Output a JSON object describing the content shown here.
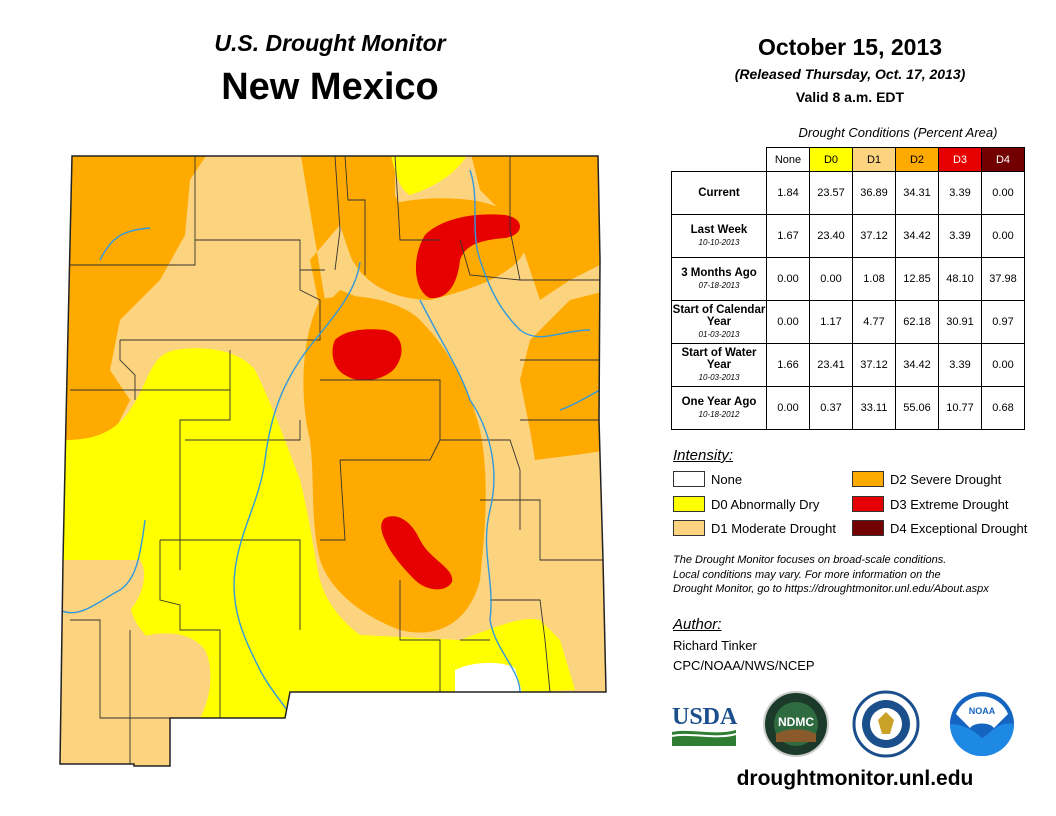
{
  "header": {
    "subtitle": "U.S. Drought Monitor",
    "state": "New Mexico"
  },
  "report": {
    "date": "October 15, 2013",
    "released": "(Released Thursday, Oct. 17, 2013)",
    "valid": "Valid 8 a.m. EDT"
  },
  "table": {
    "caption": "Drought Conditions (Percent Area)",
    "columns": [
      "None",
      "D0",
      "D1",
      "D2",
      "D3",
      "D4"
    ],
    "rows": [
      {
        "label": "Current",
        "date": "",
        "values": [
          "1.84",
          "23.57",
          "36.89",
          "34.31",
          "3.39",
          "0.00"
        ]
      },
      {
        "label": "Last Week",
        "date": "10-10-2013",
        "values": [
          "1.67",
          "23.40",
          "37.12",
          "34.42",
          "3.39",
          "0.00"
        ]
      },
      {
        "label": "3 Months Ago",
        "date": "07-18-2013",
        "values": [
          "0.00",
          "0.00",
          "1.08",
          "12.85",
          "48.10",
          "37.98"
        ]
      },
      {
        "label": "Start of Calendar Year",
        "date": "01-03-2013",
        "values": [
          "0.00",
          "1.17",
          "4.77",
          "62.18",
          "30.91",
          "0.97"
        ]
      },
      {
        "label": "Start of Water Year",
        "date": "10-03-2013",
        "values": [
          "1.66",
          "23.41",
          "37.12",
          "34.42",
          "3.39",
          "0.00"
        ]
      },
      {
        "label": "One Year Ago",
        "date": "10-18-2012",
        "values": [
          "0.00",
          "0.37",
          "33.11",
          "55.06",
          "10.77",
          "0.68"
        ]
      }
    ]
  },
  "legend": {
    "title": "Intensity:",
    "items": [
      {
        "label": "None",
        "color": "#ffffff"
      },
      {
        "label": "D0 Abnormally Dry",
        "color": "#ffff00"
      },
      {
        "label": "D1 Moderate Drought",
        "color": "#fcd37f"
      },
      {
        "label": "D2 Severe Drought",
        "color": "#ffaa00"
      },
      {
        "label": "D3 Extreme Drought",
        "color": "#e60000"
      },
      {
        "label": "D4 Exceptional Drought",
        "color": "#730000"
      }
    ]
  },
  "note": {
    "line1": "The Drought Monitor focuses on broad-scale conditions.",
    "line2": "Local conditions may vary. For more information on the",
    "line3": "Drought Monitor, go to https://droughtmonitor.unl.edu/About.aspx"
  },
  "author": {
    "title": "Author:",
    "name": "Richard Tinker",
    "org": "CPC/NOAA/NWS/NCEP"
  },
  "logos": {
    "usda": "USDA",
    "ndmc": "NDMC",
    "noaa": "NOAA"
  },
  "website": "droughtmonitor.unl.edu",
  "colors": {
    "none": "#ffffff",
    "d0": "#ffff00",
    "d1": "#fcd37f",
    "d2": "#ffaa00",
    "d3": "#e60000",
    "d4": "#730000",
    "river": "#3399dd",
    "county": "#333333"
  }
}
